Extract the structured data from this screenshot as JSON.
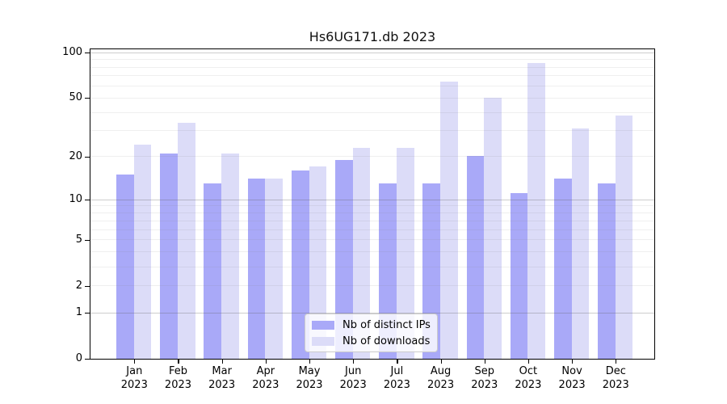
{
  "title": "Hs6UG171.db 2023",
  "chart_data": {
    "type": "bar",
    "title": "Hs6UG171.db 2023",
    "categories": [
      "Jan 2023",
      "Feb 2023",
      "Mar 2023",
      "Apr 2023",
      "May 2023",
      "Jun 2023",
      "Jul 2023",
      "Aug 2023",
      "Sep 2023",
      "Oct 2023",
      "Nov 2023",
      "Dec 2023"
    ],
    "series": [
      {
        "name": "Nb of distinct IPs",
        "color": "#a9a9f8",
        "values": [
          15,
          21,
          13,
          14,
          16,
          19,
          13,
          13,
          20,
          11,
          14,
          13
        ]
      },
      {
        "name": "Nb of downloads",
        "color": "#dcdcf8",
        "values": [
          24,
          34,
          21,
          14,
          17,
          23,
          23,
          64,
          50,
          85,
          31,
          38
        ]
      }
    ],
    "xlabel": "",
    "ylabel": "",
    "yscale": "log1p",
    "ylim": [
      0,
      105
    ],
    "yticks": [
      0,
      1,
      2,
      5,
      10,
      20,
      50,
      100
    ],
    "major_gridlines": [
      1,
      10,
      100
    ],
    "minor_gridlines": [
      2,
      3,
      4,
      5,
      6,
      7,
      8,
      9,
      20,
      30,
      40,
      50,
      60,
      70,
      80,
      90
    ],
    "grid": true,
    "legend_position": "bottom-center"
  },
  "legend": {
    "items": [
      {
        "label": "Nb of distinct IPs"
      },
      {
        "label": "Nb of downloads"
      }
    ]
  }
}
